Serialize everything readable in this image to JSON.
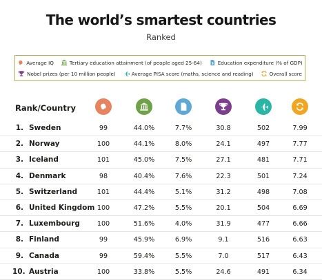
{
  "header": {
    "title": "The world’s smartest countries",
    "subtitle": "Ranked"
  },
  "legend": {
    "row1": [
      {
        "label": "Average IQ",
        "icon": "brain-icon",
        "color": "#e7835f"
      },
      {
        "label": "Tertiary education attainment (of people aged 25-64)",
        "icon": "university-icon",
        "color": "#6fa248"
      },
      {
        "label": "Education expenditure (% of GDP)",
        "icon": "document-icon",
        "color": "#5fa8d6"
      }
    ],
    "row2": [
      {
        "label": "Nobel prizes (per 10 million people)",
        "icon": "trophy-icon",
        "color": "#7b3f8c"
      },
      {
        "label": "Average PISA score (maths, science and reading)",
        "icon": "airplane-icon",
        "color": "#2ab5a5"
      },
      {
        "label": "Overall score",
        "icon": "refresh-icon",
        "color": "#f0a623"
      }
    ]
  },
  "table": {
    "header_label": "Rank/Country",
    "column_icons": [
      {
        "icon": "brain-icon",
        "color": "#e7835f"
      },
      {
        "icon": "university-icon",
        "color": "#6fa248"
      },
      {
        "icon": "document-icon",
        "color": "#5fa8d6"
      },
      {
        "icon": "trophy-icon",
        "color": "#7b3f8c"
      },
      {
        "icon": "airplane-icon",
        "color": "#2ab5a5"
      },
      {
        "icon": "refresh-icon",
        "color": "#f0a623"
      }
    ],
    "rows": [
      {
        "rank": "1.",
        "country": "Sweden",
        "iq": "99",
        "tertiary": "44.0%",
        "expenditure": "7.7%",
        "nobel": "30.8",
        "pisa": "502",
        "overall": "7.99"
      },
      {
        "rank": "2.",
        "country": "Norway",
        "iq": "100",
        "tertiary": "44.1%",
        "expenditure": "8.0%",
        "nobel": "24.1",
        "pisa": "497",
        "overall": "7.77"
      },
      {
        "rank": "3.",
        "country": "Iceland",
        "iq": "101",
        "tertiary": "45.0%",
        "expenditure": "7.5%",
        "nobel": "27.1",
        "pisa": "481",
        "overall": "7.71"
      },
      {
        "rank": "4.",
        "country": "Denmark",
        "iq": "98",
        "tertiary": "40.4%",
        "expenditure": "7.6%",
        "nobel": "22.3",
        "pisa": "501",
        "overall": "7.24"
      },
      {
        "rank": "5.",
        "country": "Switzerland",
        "iq": "101",
        "tertiary": "44.4%",
        "expenditure": "5.1%",
        "nobel": "31.2",
        "pisa": "498",
        "overall": "7.08"
      },
      {
        "rank": "6.",
        "country": "United Kingdom",
        "iq": "100",
        "tertiary": "47.2%",
        "expenditure": "5.5%",
        "nobel": "20.1",
        "pisa": "504",
        "overall": "6.69"
      },
      {
        "rank": "7.",
        "country": "Luxembourg",
        "iq": "100",
        "tertiary": "51.6%",
        "expenditure": "4.0%",
        "nobel": "31.9",
        "pisa": "477",
        "overall": "6.66"
      },
      {
        "rank": "8.",
        "country": "Finland",
        "iq": "99",
        "tertiary": "45.9%",
        "expenditure": "6.9%",
        "nobel": "9.1",
        "pisa": "516",
        "overall": "6.63"
      },
      {
        "rank": "9.",
        "country": "Canada",
        "iq": "99",
        "tertiary": "59.4%",
        "expenditure": "5.5%",
        "nobel": "7.0",
        "pisa": "517",
        "overall": "6.43"
      },
      {
        "rank": "10.",
        "country": "Austria",
        "iq": "100",
        "tertiary": "33.8%",
        "expenditure": "5.5%",
        "nobel": "24.6",
        "pisa": "491",
        "overall": "6.34"
      }
    ]
  }
}
